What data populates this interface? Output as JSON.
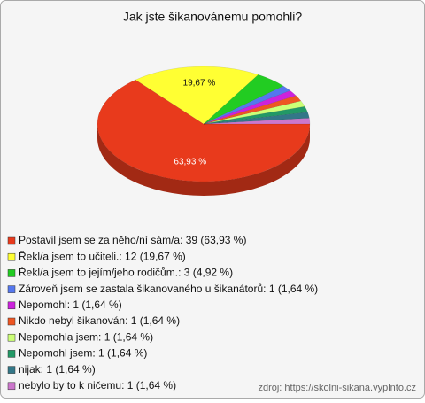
{
  "chart_data": {
    "type": "pie",
    "title": "Jak jste šikanovánemu pomohli?",
    "categories": [
      "Postavil jsem se za něho/ní sám/a: 39 (63,93 %)",
      "Řekl/a jsem to učiteli.: 12 (19,67 %)",
      "Řekl/a jsem to jejím/jeho rodičům.: 3 (4,92 %)",
      "Zároveň jsem se zastala šikanovaného u šikanátorů: 1 (1,64 %)",
      "Nepomohl: 1 (1,64 %)",
      "Nikdo nebyl šikanován: 1 (1,64 %)",
      "Nepomohla jsem: 1 (1,64 %)",
      "Nepomohl jsem: 1 (1,64 %)",
      "nijak: 1 (1,64 %)",
      "nebylo by to k ničemu: 1 (1,64 %)"
    ],
    "values": [
      63.93,
      19.67,
      4.92,
      1.64,
      1.64,
      1.64,
      1.64,
      1.64,
      1.64,
      1.64
    ],
    "value_labels": [
      "63,93 %",
      "19,67 %",
      null,
      null,
      null,
      null,
      null,
      null,
      null,
      null
    ],
    "colors": [
      "#e83a1c",
      "#ffff33",
      "#22cc22",
      "#5577ee",
      "#cc22dd",
      "#ee5522",
      "#ccff77",
      "#229966",
      "#337788",
      "#cc77cc"
    ],
    "source": "zdroj: https://skolni-sikana.vyplnto.cz"
  }
}
